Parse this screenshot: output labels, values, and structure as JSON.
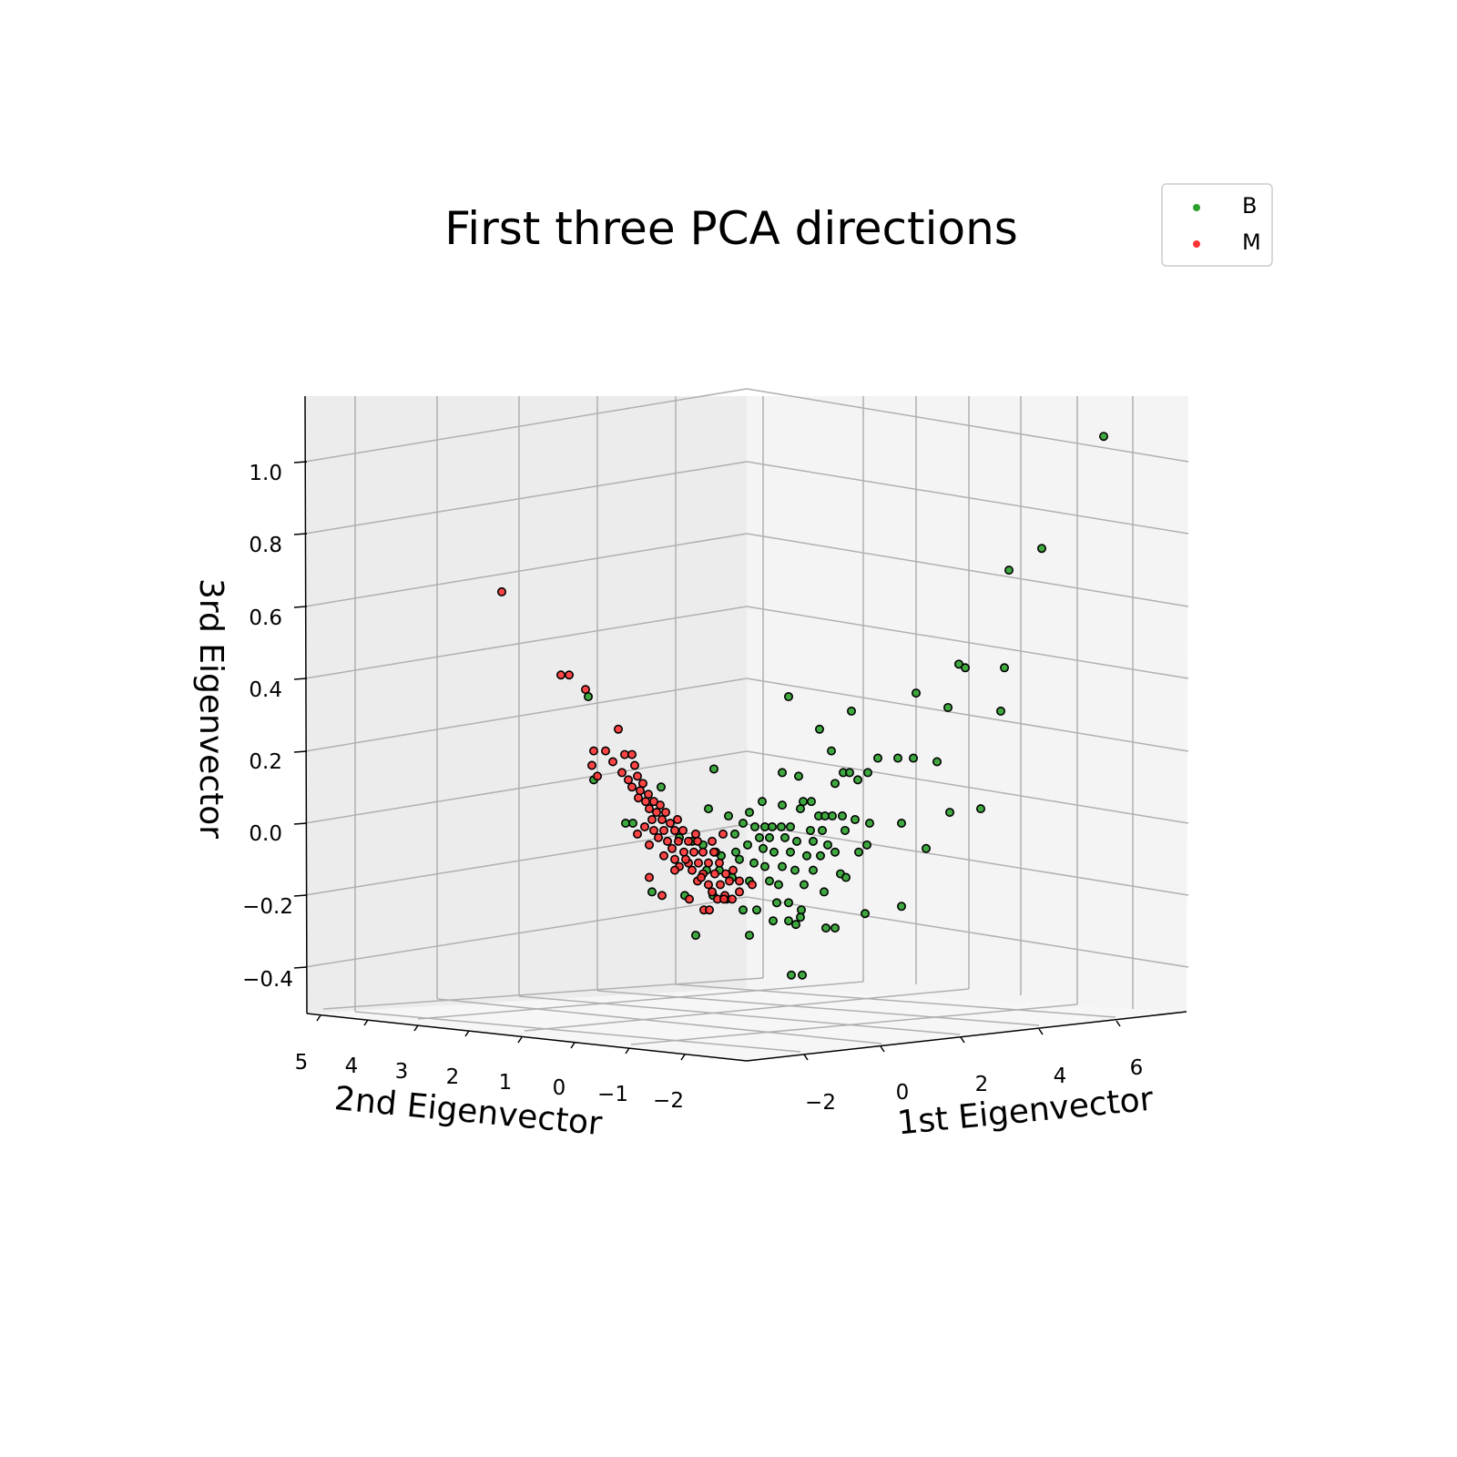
{
  "colors": {
    "benign": "#2ca02c",
    "malignant": "#ff3333",
    "edge": "#000000",
    "grid": "#b0b0b0"
  },
  "chart_data": {
    "type": "scatter",
    "projection": "3d",
    "title": "First three PCA directions",
    "xlabel": "1st Eigenvector",
    "ylabel": "2nd Eigenvector",
    "zlabel": "3rd Eigenvector",
    "x_ticks": [
      "−2",
      "0",
      "2",
      "4",
      "6"
    ],
    "y_ticks": [
      "5",
      "4",
      "3",
      "2",
      "1",
      "0",
      "−1",
      "−2"
    ],
    "z_ticks": [
      "1.0",
      "0.8",
      "0.6",
      "0.4",
      "0.2",
      "0.0",
      "−0.2",
      "−0.4"
    ],
    "zlim": [
      -0.5,
      1.18
    ],
    "grid": true,
    "legend_position": "top-right",
    "legend": [
      {
        "label": "B",
        "color": "#2ca02c"
      },
      {
        "label": "M",
        "color": "#ff3333"
      }
    ],
    "series_note": "screen-projected values: u = horizontal position (relative scale), z = 3rd eigenvector value",
    "series": [
      {
        "name": "B",
        "color": "#2ca02c",
        "points": [
          [
            1212,
            1.07
          ],
          [
            1144,
            0.76
          ],
          [
            1108,
            0.7
          ],
          [
            1053,
            0.44
          ],
          [
            1060,
            0.43
          ],
          [
            1103,
            0.43
          ],
          [
            1006,
            0.36
          ],
          [
            1041,
            0.32
          ],
          [
            1099,
            0.31
          ],
          [
            866,
            0.35
          ],
          [
            935,
            0.31
          ],
          [
            646,
            0.35
          ],
          [
            900,
            0.26
          ],
          [
            913,
            0.2
          ],
          [
            964,
            0.18
          ],
          [
            986,
            0.18
          ],
          [
            1003,
            0.18
          ],
          [
            1029,
            0.17
          ],
          [
            784,
            0.15
          ],
          [
            859,
            0.14
          ],
          [
            877,
            0.13
          ],
          [
            926,
            0.14
          ],
          [
            933,
            0.14
          ],
          [
            953,
            0.14
          ],
          [
            942,
            0.12
          ],
          [
            917,
            0.11
          ],
          [
            652,
            0.12
          ],
          [
            726,
            0.1
          ],
          [
            1043,
            0.03
          ],
          [
            1077,
            0.04
          ],
          [
            837,
            0.06
          ],
          [
            859,
            0.05
          ],
          [
            882,
            0.06
          ],
          [
            891,
            0.06
          ],
          [
            879,
            0.04
          ],
          [
            778,
            0.04
          ],
          [
            823,
            0.03
          ],
          [
            899,
            0.02
          ],
          [
            906,
            0.02
          ],
          [
            914,
            0.02
          ],
          [
            925,
            0.02
          ],
          [
            939,
            0.01
          ],
          [
            955,
            0.0
          ],
          [
            990,
            0.0
          ],
          [
            800,
            0.02
          ],
          [
            816,
            0.0
          ],
          [
            829,
            -0.01
          ],
          [
            840,
            -0.01
          ],
          [
            848,
            -0.01
          ],
          [
            858,
            -0.01
          ],
          [
            868,
            -0.01
          ],
          [
            890,
            -0.02
          ],
          [
            903,
            -0.02
          ],
          [
            928,
            -0.02
          ],
          [
            807,
            -0.03
          ],
          [
            834,
            -0.04
          ],
          [
            845,
            -0.04
          ],
          [
            862,
            -0.04
          ],
          [
            875,
            -0.05
          ],
          [
            893,
            -0.05
          ],
          [
            909,
            -0.06
          ],
          [
            821,
            -0.06
          ],
          [
            838,
            -0.07
          ],
          [
            850,
            -0.08
          ],
          [
            868,
            -0.08
          ],
          [
            886,
            -0.09
          ],
          [
            901,
            -0.09
          ],
          [
            917,
            -0.08
          ],
          [
            943,
            -0.08
          ],
          [
            952,
            -0.06
          ],
          [
            1017,
            -0.07
          ],
          [
            792,
            -0.09
          ],
          [
            812,
            -0.1
          ],
          [
            828,
            -0.11
          ],
          [
            840,
            -0.12
          ],
          [
            859,
            -0.12
          ],
          [
            873,
            -0.13
          ],
          [
            893,
            -0.13
          ],
          [
            923,
            -0.14
          ],
          [
            929,
            -0.15
          ],
          [
            804,
            -0.15
          ],
          [
            823,
            -0.16
          ],
          [
            845,
            -0.16
          ],
          [
            855,
            -0.17
          ],
          [
            883,
            -0.17
          ],
          [
            905,
            -0.19
          ],
          [
            716,
            -0.19
          ],
          [
            783,
            -0.2
          ],
          [
            798,
            -0.21
          ],
          [
            853,
            -0.22
          ],
          [
            866,
            -0.22
          ],
          [
            880,
            -0.24
          ],
          [
            816,
            -0.24
          ],
          [
            831,
            -0.24
          ],
          [
            990,
            -0.23
          ],
          [
            950,
            -0.25
          ],
          [
            866,
            -0.27
          ],
          [
            874,
            -0.28
          ],
          [
            879,
            -0.26
          ],
          [
            849,
            -0.27
          ],
          [
            764,
            -0.31
          ],
          [
            823,
            -0.31
          ],
          [
            907,
            -0.29
          ],
          [
            917,
            -0.29
          ],
          [
            869,
            -0.42
          ],
          [
            881,
            -0.42
          ],
          [
            687,
            0.0
          ],
          [
            695,
            0.0
          ],
          [
            746,
            -0.04
          ],
          [
            760,
            -0.05
          ],
          [
            772,
            -0.06
          ],
          [
            786,
            -0.08
          ],
          [
            808,
            -0.08
          ],
          [
            776,
            -0.13
          ],
          [
            790,
            -0.13
          ],
          [
            752,
            -0.2
          ]
        ]
      },
      {
        "name": "M",
        "color": "#ff3333",
        "points": [
          [
            551,
            0.64
          ],
          [
            616,
            0.41
          ],
          [
            625,
            0.41
          ],
          [
            643,
            0.37
          ],
          [
            679,
            0.26
          ],
          [
            652,
            0.2
          ],
          [
            665,
            0.2
          ],
          [
            686,
            0.19
          ],
          [
            673,
            0.17
          ],
          [
            683,
            0.14
          ],
          [
            650,
            0.16
          ],
          [
            656,
            0.13
          ],
          [
            694,
            0.19
          ],
          [
            697,
            0.16
          ],
          [
            690,
            0.12
          ],
          [
            700,
            0.13
          ],
          [
            706,
            0.11
          ],
          [
            694,
            0.1
          ],
          [
            703,
            0.09
          ],
          [
            712,
            0.08
          ],
          [
            701,
            0.07
          ],
          [
            709,
            0.06
          ],
          [
            718,
            0.06
          ],
          [
            725,
            0.05
          ],
          [
            713,
            0.04
          ],
          [
            721,
            0.03
          ],
          [
            731,
            0.03
          ],
          [
            716,
            0.01
          ],
          [
            727,
            0.01
          ],
          [
            736,
            0.0
          ],
          [
            744,
            0.01
          ],
          [
            708,
            -0.01
          ],
          [
            718,
            -0.02
          ],
          [
            729,
            -0.02
          ],
          [
            741,
            -0.02
          ],
          [
            750,
            -0.02
          ],
          [
            723,
            -0.04
          ],
          [
            733,
            -0.05
          ],
          [
            745,
            -0.05
          ],
          [
            756,
            -0.05
          ],
          [
            766,
            -0.05
          ],
          [
            713,
            -0.06
          ],
          [
            738,
            -0.07
          ],
          [
            751,
            -0.08
          ],
          [
            762,
            -0.08
          ],
          [
            772,
            -0.08
          ],
          [
            784,
            -0.08
          ],
          [
            729,
            -0.09
          ],
          [
            741,
            -0.1
          ],
          [
            756,
            -0.11
          ],
          [
            767,
            -0.11
          ],
          [
            778,
            -0.11
          ],
          [
            790,
            -0.11
          ],
          [
            746,
            -0.12
          ],
          [
            760,
            -0.13
          ],
          [
            772,
            -0.14
          ],
          [
            785,
            -0.14
          ],
          [
            797,
            -0.14
          ],
          [
            805,
            -0.13
          ],
          [
            766,
            -0.16
          ],
          [
            778,
            -0.17
          ],
          [
            791,
            -0.17
          ],
          [
            801,
            -0.16
          ],
          [
            812,
            -0.16
          ],
          [
            782,
            -0.19
          ],
          [
            796,
            -0.2
          ],
          [
            812,
            -0.19
          ],
          [
            826,
            -0.17
          ],
          [
            727,
            -0.2
          ],
          [
            757,
            -0.21
          ],
          [
            773,
            -0.24
          ],
          [
            779,
            -0.24
          ],
          [
            788,
            -0.21
          ],
          [
            795,
            -0.21
          ],
          [
            804,
            -0.21
          ],
          [
            713,
            -0.15
          ],
          [
            700,
            -0.03
          ],
          [
            741,
            -0.13
          ],
          [
            753,
            -0.1
          ],
          [
            764,
            -0.03
          ],
          [
            770,
            -0.15
          ],
          [
            782,
            -0.05
          ],
          [
            794,
            -0.03
          ]
        ]
      }
    ]
  }
}
